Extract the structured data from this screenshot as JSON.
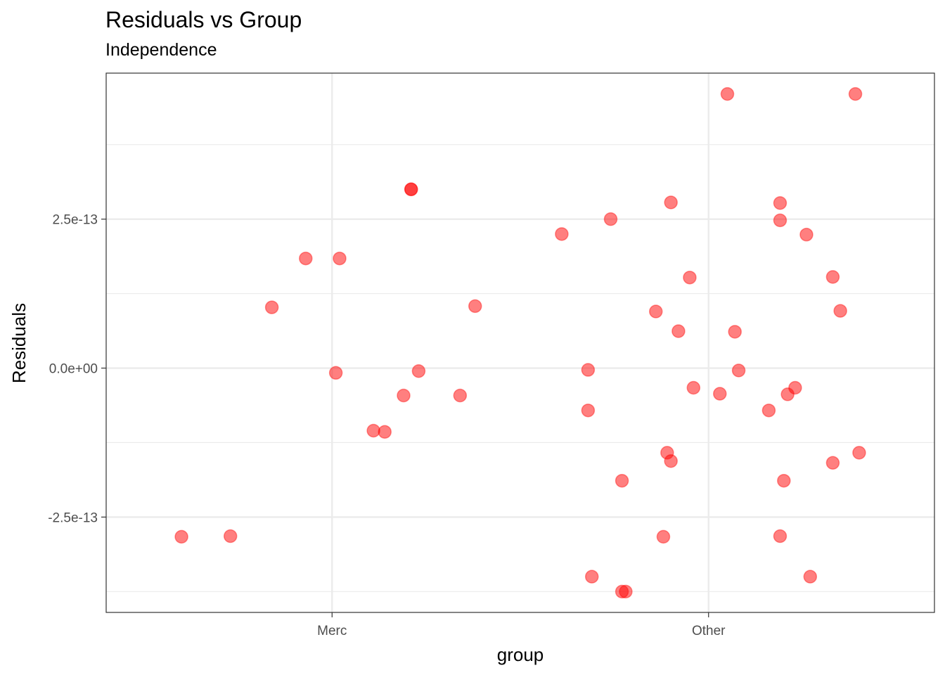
{
  "chart_data": {
    "type": "scatter",
    "title": "Residuals vs Group",
    "subtitle": "Independence",
    "xlabel": "group",
    "ylabel": "Residuals",
    "x_categories": [
      "Merc",
      "Other"
    ],
    "x_range": [
      0.4,
      2.6
    ],
    "y_range": [
      -4.1e-13,
      4.95e-13
    ],
    "y_ticks": [
      {
        "value": 2.5e-13,
        "label": "2.5e-13"
      },
      {
        "value": 0,
        "label": "0.0e+00"
      },
      {
        "value": -2.5e-13,
        "label": "-2.5e-13"
      }
    ],
    "y_minor_ticks": [
      3.75e-13,
      1.25e-13,
      -1.25e-13,
      -3.75e-13
    ],
    "grid": true,
    "point_color": "#ff0000",
    "point_opacity": 0.5,
    "points": [
      {
        "x": 0.6,
        "y": -2.83e-13
      },
      {
        "x": 0.73,
        "y": -2.82e-13
      },
      {
        "x": 0.84,
        "y": 1.02e-13
      },
      {
        "x": 0.93,
        "y": 1.84e-13
      },
      {
        "x": 1.01,
        "y": -8e-15
      },
      {
        "x": 1.02,
        "y": 1.84e-13
      },
      {
        "x": 1.11,
        "y": -1.05e-13
      },
      {
        "x": 1.14,
        "y": -1.07e-13
      },
      {
        "x": 1.19,
        "y": -4.6e-14
      },
      {
        "x": 1.21,
        "y": 3e-13
      },
      {
        "x": 1.21,
        "y": 3e-13
      },
      {
        "x": 1.23,
        "y": -5e-15
      },
      {
        "x": 1.34,
        "y": -4.6e-14
      },
      {
        "x": 1.38,
        "y": 1.04e-13
      },
      {
        "x": 1.61,
        "y": 2.25e-13
      },
      {
        "x": 1.68,
        "y": -3e-15
      },
      {
        "x": 1.68,
        "y": -7.1e-14
      },
      {
        "x": 1.69,
        "y": -3.5e-13
      },
      {
        "x": 1.74,
        "y": 2.5e-13
      },
      {
        "x": 1.77,
        "y": -1.89e-13
      },
      {
        "x": 1.77,
        "y": -3.75e-13
      },
      {
        "x": 1.78,
        "y": -3.75e-13
      },
      {
        "x": 1.86,
        "y": 9.5e-14
      },
      {
        "x": 1.88,
        "y": -2.83e-13
      },
      {
        "x": 1.89,
        "y": -1.42e-13
      },
      {
        "x": 1.9,
        "y": -1.56e-13
      },
      {
        "x": 1.9,
        "y": 2.78e-13
      },
      {
        "x": 1.92,
        "y": 6.2e-14
      },
      {
        "x": 1.95,
        "y": 1.52e-13
      },
      {
        "x": 1.96,
        "y": -3.3e-14
      },
      {
        "x": 2.03,
        "y": -4.3e-14
      },
      {
        "x": 2.05,
        "y": 4.6e-13
      },
      {
        "x": 2.07,
        "y": 6.1e-14
      },
      {
        "x": 2.08,
        "y": -4e-15
      },
      {
        "x": 2.16,
        "y": -7.1e-14
      },
      {
        "x": 2.19,
        "y": -2.82e-13
      },
      {
        "x": 2.19,
        "y": 2.77e-13
      },
      {
        "x": 2.19,
        "y": 2.48e-13
      },
      {
        "x": 2.2,
        "y": -1.89e-13
      },
      {
        "x": 2.21,
        "y": -4.4e-14
      },
      {
        "x": 2.23,
        "y": -3.3e-14
      },
      {
        "x": 2.26,
        "y": 2.24e-13
      },
      {
        "x": 2.27,
        "y": -3.5e-13
      },
      {
        "x": 2.33,
        "y": 1.53e-13
      },
      {
        "x": 2.33,
        "y": -1.59e-13
      },
      {
        "x": 2.35,
        "y": 9.6e-14
      },
      {
        "x": 2.39,
        "y": 4.6e-13
      },
      {
        "x": 2.4,
        "y": -1.42e-13
      }
    ]
  }
}
